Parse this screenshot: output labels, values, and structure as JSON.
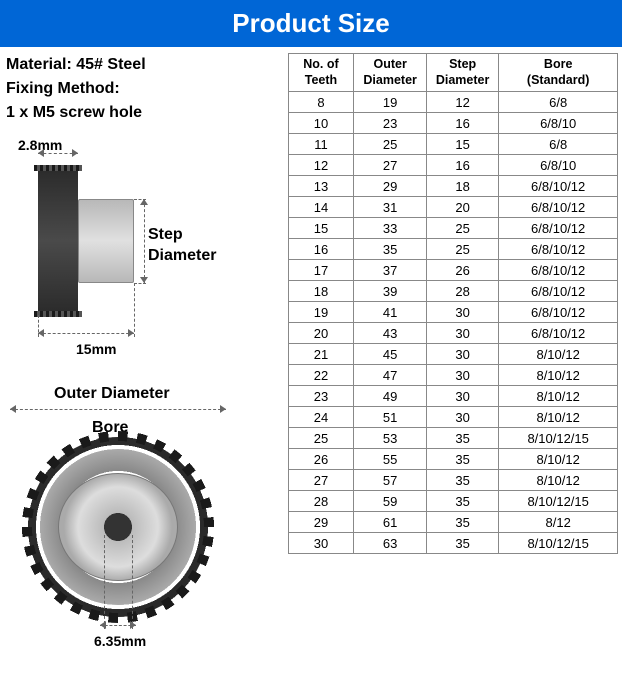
{
  "header": {
    "title": "Product Size"
  },
  "spec": {
    "material_label": "Material:",
    "material_value": "45# Steel",
    "fixing_label": "Fixing Method:",
    "fixing_value": "1 x M5 screw hole"
  },
  "dims": {
    "tooth_width": "2.8mm",
    "total_width": "15mm",
    "step_label": "Step\nDiameter",
    "outer_label": "Outer Diameter",
    "bore_label": "Bore",
    "pitch": "6.35mm"
  },
  "table": {
    "headers": [
      "No. of\nTeeth",
      "Outer\nDiameter",
      "Step\nDiameter",
      "Bore\n(Standard)"
    ],
    "rows": [
      [
        "8",
        "19",
        "12",
        "6/8"
      ],
      [
        "10",
        "23",
        "16",
        "6/8/10"
      ],
      [
        "11",
        "25",
        "15",
        "6/8"
      ],
      [
        "12",
        "27",
        "16",
        "6/8/10"
      ],
      [
        "13",
        "29",
        "18",
        "6/8/10/12"
      ],
      [
        "14",
        "31",
        "20",
        "6/8/10/12"
      ],
      [
        "15",
        "33",
        "25",
        "6/8/10/12"
      ],
      [
        "16",
        "35",
        "25",
        "6/8/10/12"
      ],
      [
        "17",
        "37",
        "26",
        "6/8/10/12"
      ],
      [
        "18",
        "39",
        "28",
        "6/8/10/12"
      ],
      [
        "19",
        "41",
        "30",
        "6/8/10/12"
      ],
      [
        "20",
        "43",
        "30",
        "6/8/10/12"
      ],
      [
        "21",
        "45",
        "30",
        "8/10/12"
      ],
      [
        "22",
        "47",
        "30",
        "8/10/12"
      ],
      [
        "23",
        "49",
        "30",
        "8/10/12"
      ],
      [
        "24",
        "51",
        "30",
        "8/10/12"
      ],
      [
        "25",
        "53",
        "35",
        "8/10/12/15"
      ],
      [
        "26",
        "55",
        "35",
        "8/10/12"
      ],
      [
        "27",
        "57",
        "35",
        "8/10/12"
      ],
      [
        "28",
        "59",
        "35",
        "8/10/12/15"
      ],
      [
        "29",
        "61",
        "35",
        "8/12"
      ],
      [
        "30",
        "63",
        "35",
        "8/10/12/15"
      ]
    ],
    "col_widths": [
      "20%",
      "22%",
      "22%",
      "36%"
    ],
    "border_color": "#888888",
    "header_fontsize": 12.5,
    "cell_fontsize": 13
  },
  "colors": {
    "header_bg": "#0066d6",
    "header_text": "#ffffff",
    "text": "#000000",
    "dim_line": "#666666",
    "steel_dark": "#2a2a2a",
    "steel_light": "#dddddd"
  }
}
